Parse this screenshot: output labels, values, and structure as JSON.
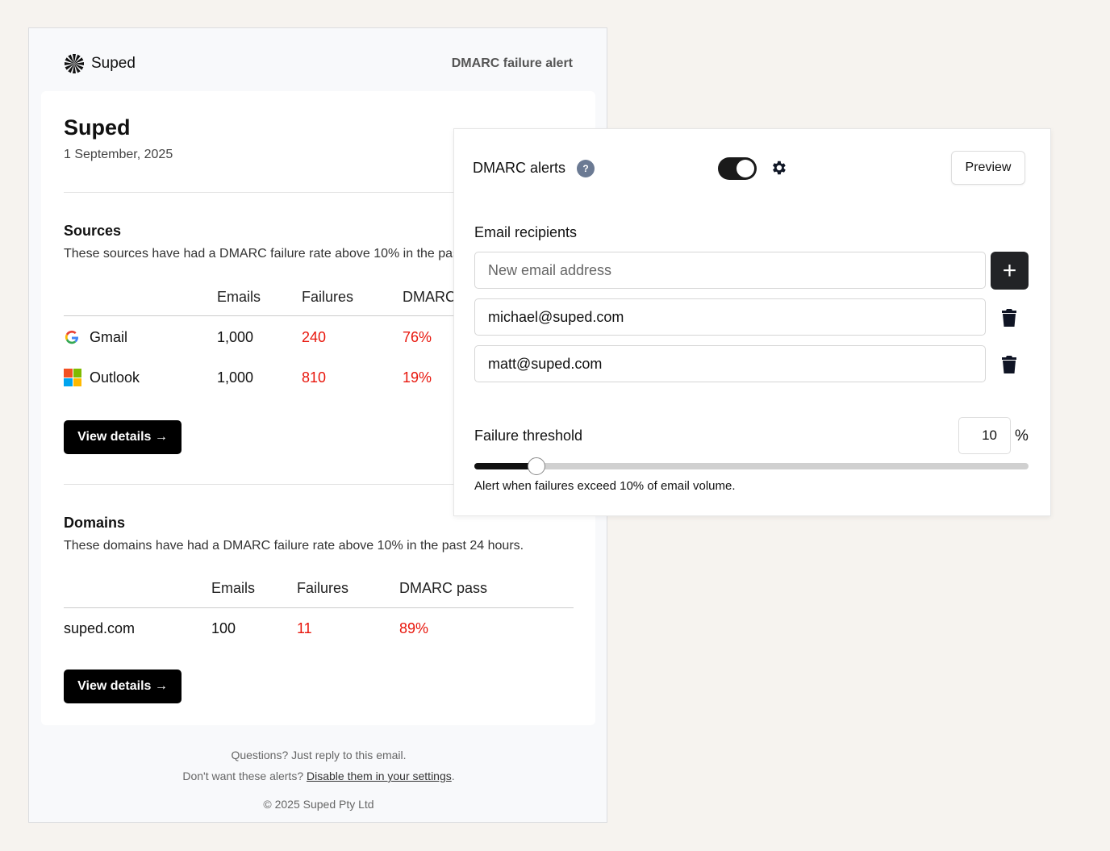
{
  "email": {
    "brand": "Suped",
    "alert_title": "DMARC failure alert",
    "title": "Suped",
    "date": "1 September, 2025",
    "sources": {
      "heading": "Sources",
      "description": "These sources have had a DMARC failure rate above 10% in the past 24 hours.",
      "columns": [
        "Emails",
        "Failures",
        "DMARC pass"
      ],
      "rows": [
        {
          "name": "Gmail",
          "icon": "google-icon",
          "emails": "1,000",
          "failures": "240",
          "pass": "76%"
        },
        {
          "name": "Outlook",
          "icon": "microsoft-icon",
          "emails": "1,000",
          "failures": "810",
          "pass": "19%"
        }
      ],
      "button": "View details →"
    },
    "domains": {
      "heading": "Domains",
      "description": "These domains have had a DMARC failure rate above 10% in the past 24 hours.",
      "columns": [
        "Emails",
        "Failures",
        "DMARC pass"
      ],
      "rows": [
        {
          "name": "suped.com",
          "emails": "100",
          "failures": "11",
          "pass": "89%"
        }
      ],
      "button": "View details →"
    },
    "footer": {
      "question": "Questions? Just reply to this email.",
      "disable_prefix": "Don't want these alerts? ",
      "disable_link": "Disable them in your settings",
      "disable_suffix": ".",
      "copyright": "© 2025 Suped Pty Ltd"
    }
  },
  "panel": {
    "title": "DMARC alerts",
    "help": "?",
    "toggle_on": true,
    "preview": "Preview",
    "recipients_label": "Email recipients",
    "new_email_placeholder": "New email address",
    "recipients": [
      "michael@suped.com",
      "matt@suped.com"
    ],
    "threshold_label": "Failure threshold",
    "threshold_value": "10",
    "threshold_unit": "%",
    "threshold_percent": 10,
    "threshold_note": "Alert when failures exceed 10% of email volume."
  },
  "colors": {
    "failure": "#e8160c",
    "button": "#000000"
  }
}
